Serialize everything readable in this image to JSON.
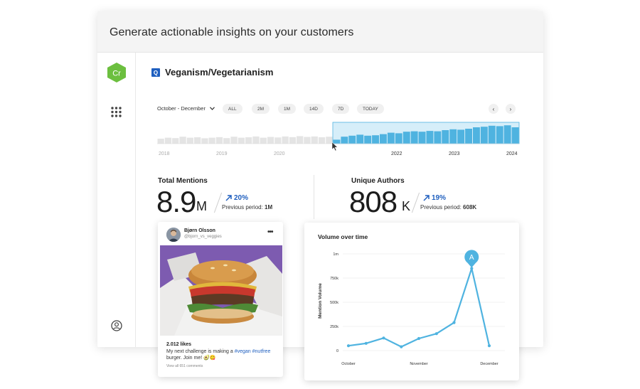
{
  "window": {
    "title": "Generate actionable insights on your customers"
  },
  "sidebar": {
    "logo_text": "Cr"
  },
  "topic": {
    "badge": "Q",
    "title": "Veganism/Vegetarianism"
  },
  "period": {
    "label": "October - December"
  },
  "ranges": [
    "ALL",
    "2M",
    "1M",
    "14D",
    "7D",
    "TODAY"
  ],
  "nav": {
    "prev": "‹",
    "next": "›"
  },
  "timeline": {
    "years": [
      "2018",
      "2019",
      "2020",
      "2022",
      "2023",
      "2024"
    ],
    "history_levels": [
      0.25,
      0.3,
      0.28,
      0.35,
      0.3,
      0.32,
      0.27,
      0.3,
      0.33,
      0.28,
      0.35,
      0.3,
      0.32,
      0.36,
      0.3,
      0.34,
      0.31,
      0.36,
      0.33,
      0.38,
      0.34,
      0.36,
      0.32,
      0.35
    ],
    "selected_levels": [
      0.2,
      0.35,
      0.4,
      0.45,
      0.4,
      0.42,
      0.48,
      0.55,
      0.52,
      0.6,
      0.62,
      0.6,
      0.64,
      0.62,
      0.68,
      0.72,
      0.7,
      0.75,
      0.82,
      0.85,
      0.9,
      0.88,
      0.92,
      0.82
    ],
    "accent": "#4fb3e0"
  },
  "metrics": {
    "mentions": {
      "label": "Total Mentions",
      "value": "8.9",
      "unit": "M",
      "change": "20%",
      "prev_label": "Previous period:",
      "prev_value": "1M"
    },
    "authors": {
      "label": "Unique Authors",
      "value": "808",
      "unit": "K",
      "change": "19%",
      "prev_label": "Previous period:",
      "prev_value": "608K"
    }
  },
  "post": {
    "author": "Bjørn Olsson",
    "handle": "@bjorn_vs_veggies",
    "more": "•••",
    "likes": "2.012 likes",
    "text": "My next challenge is making a",
    "tags": "#vegan #nutfree",
    "text_end": "burger. Join me! 🥑😋",
    "comments": "View all 651 comments"
  },
  "chart_data": {
    "type": "line",
    "title": "Volume over time",
    "ylabel": "Mention Volume",
    "y_ticks": [
      "1m",
      "750k",
      "500k",
      "250k",
      "0"
    ],
    "ylim": [
      0,
      1000000
    ],
    "x_labels": [
      "October",
      "November",
      "December"
    ],
    "values": [
      50000,
      75000,
      130000,
      40000,
      125000,
      175000,
      290000,
      850000,
      50000
    ],
    "annotation": {
      "label": "A",
      "point_index": 7
    },
    "color": "#4fb3e0"
  }
}
